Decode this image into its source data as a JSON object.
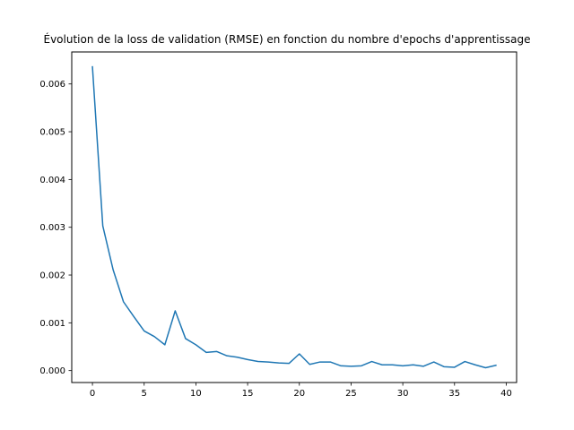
{
  "chart_data": {
    "type": "line",
    "title": "Évolution de la loss de validation (RMSE) en fonction du nombre d'epochs d'apprentissage",
    "xlabel": "",
    "ylabel": "",
    "xlim": [
      -2,
      41
    ],
    "ylim": [
      -0.00025,
      0.00667
    ],
    "x_ticks": [
      0,
      5,
      10,
      15,
      20,
      25,
      30,
      35,
      40
    ],
    "y_ticks": [
      0.0,
      0.001,
      0.002,
      0.003,
      0.004,
      0.005,
      0.006
    ],
    "y_tick_labels": [
      "0.000",
      "0.001",
      "0.002",
      "0.003",
      "0.004",
      "0.005",
      "0.006"
    ],
    "grid": false,
    "series": [
      {
        "color": "#1f77b4",
        "x": [
          0,
          1,
          2,
          3,
          4,
          5,
          6,
          7,
          8,
          9,
          10,
          11,
          12,
          13,
          14,
          15,
          16,
          17,
          18,
          19,
          20,
          21,
          22,
          23,
          24,
          25,
          26,
          27,
          28,
          29,
          30,
          31,
          32,
          33,
          34,
          35,
          36,
          37,
          38,
          39
        ],
        "values": [
          0.00636,
          0.00303,
          0.00211,
          0.00144,
          0.00113,
          0.00083,
          0.00071,
          0.00054,
          0.00125,
          0.00067,
          0.00054,
          0.00038,
          0.0004,
          0.00031,
          0.00028,
          0.00023,
          0.00019,
          0.00018,
          0.00016,
          0.00015,
          0.00035,
          0.00013,
          0.00018,
          0.00018,
          0.0001,
          9e-05,
          0.0001,
          0.00019,
          0.00012,
          0.00012,
          0.0001,
          0.00012,
          9e-05,
          0.00018,
          8e-05,
          7e-05,
          0.00019,
          0.00012,
          6e-05,
          0.00011
        ]
      }
    ]
  }
}
